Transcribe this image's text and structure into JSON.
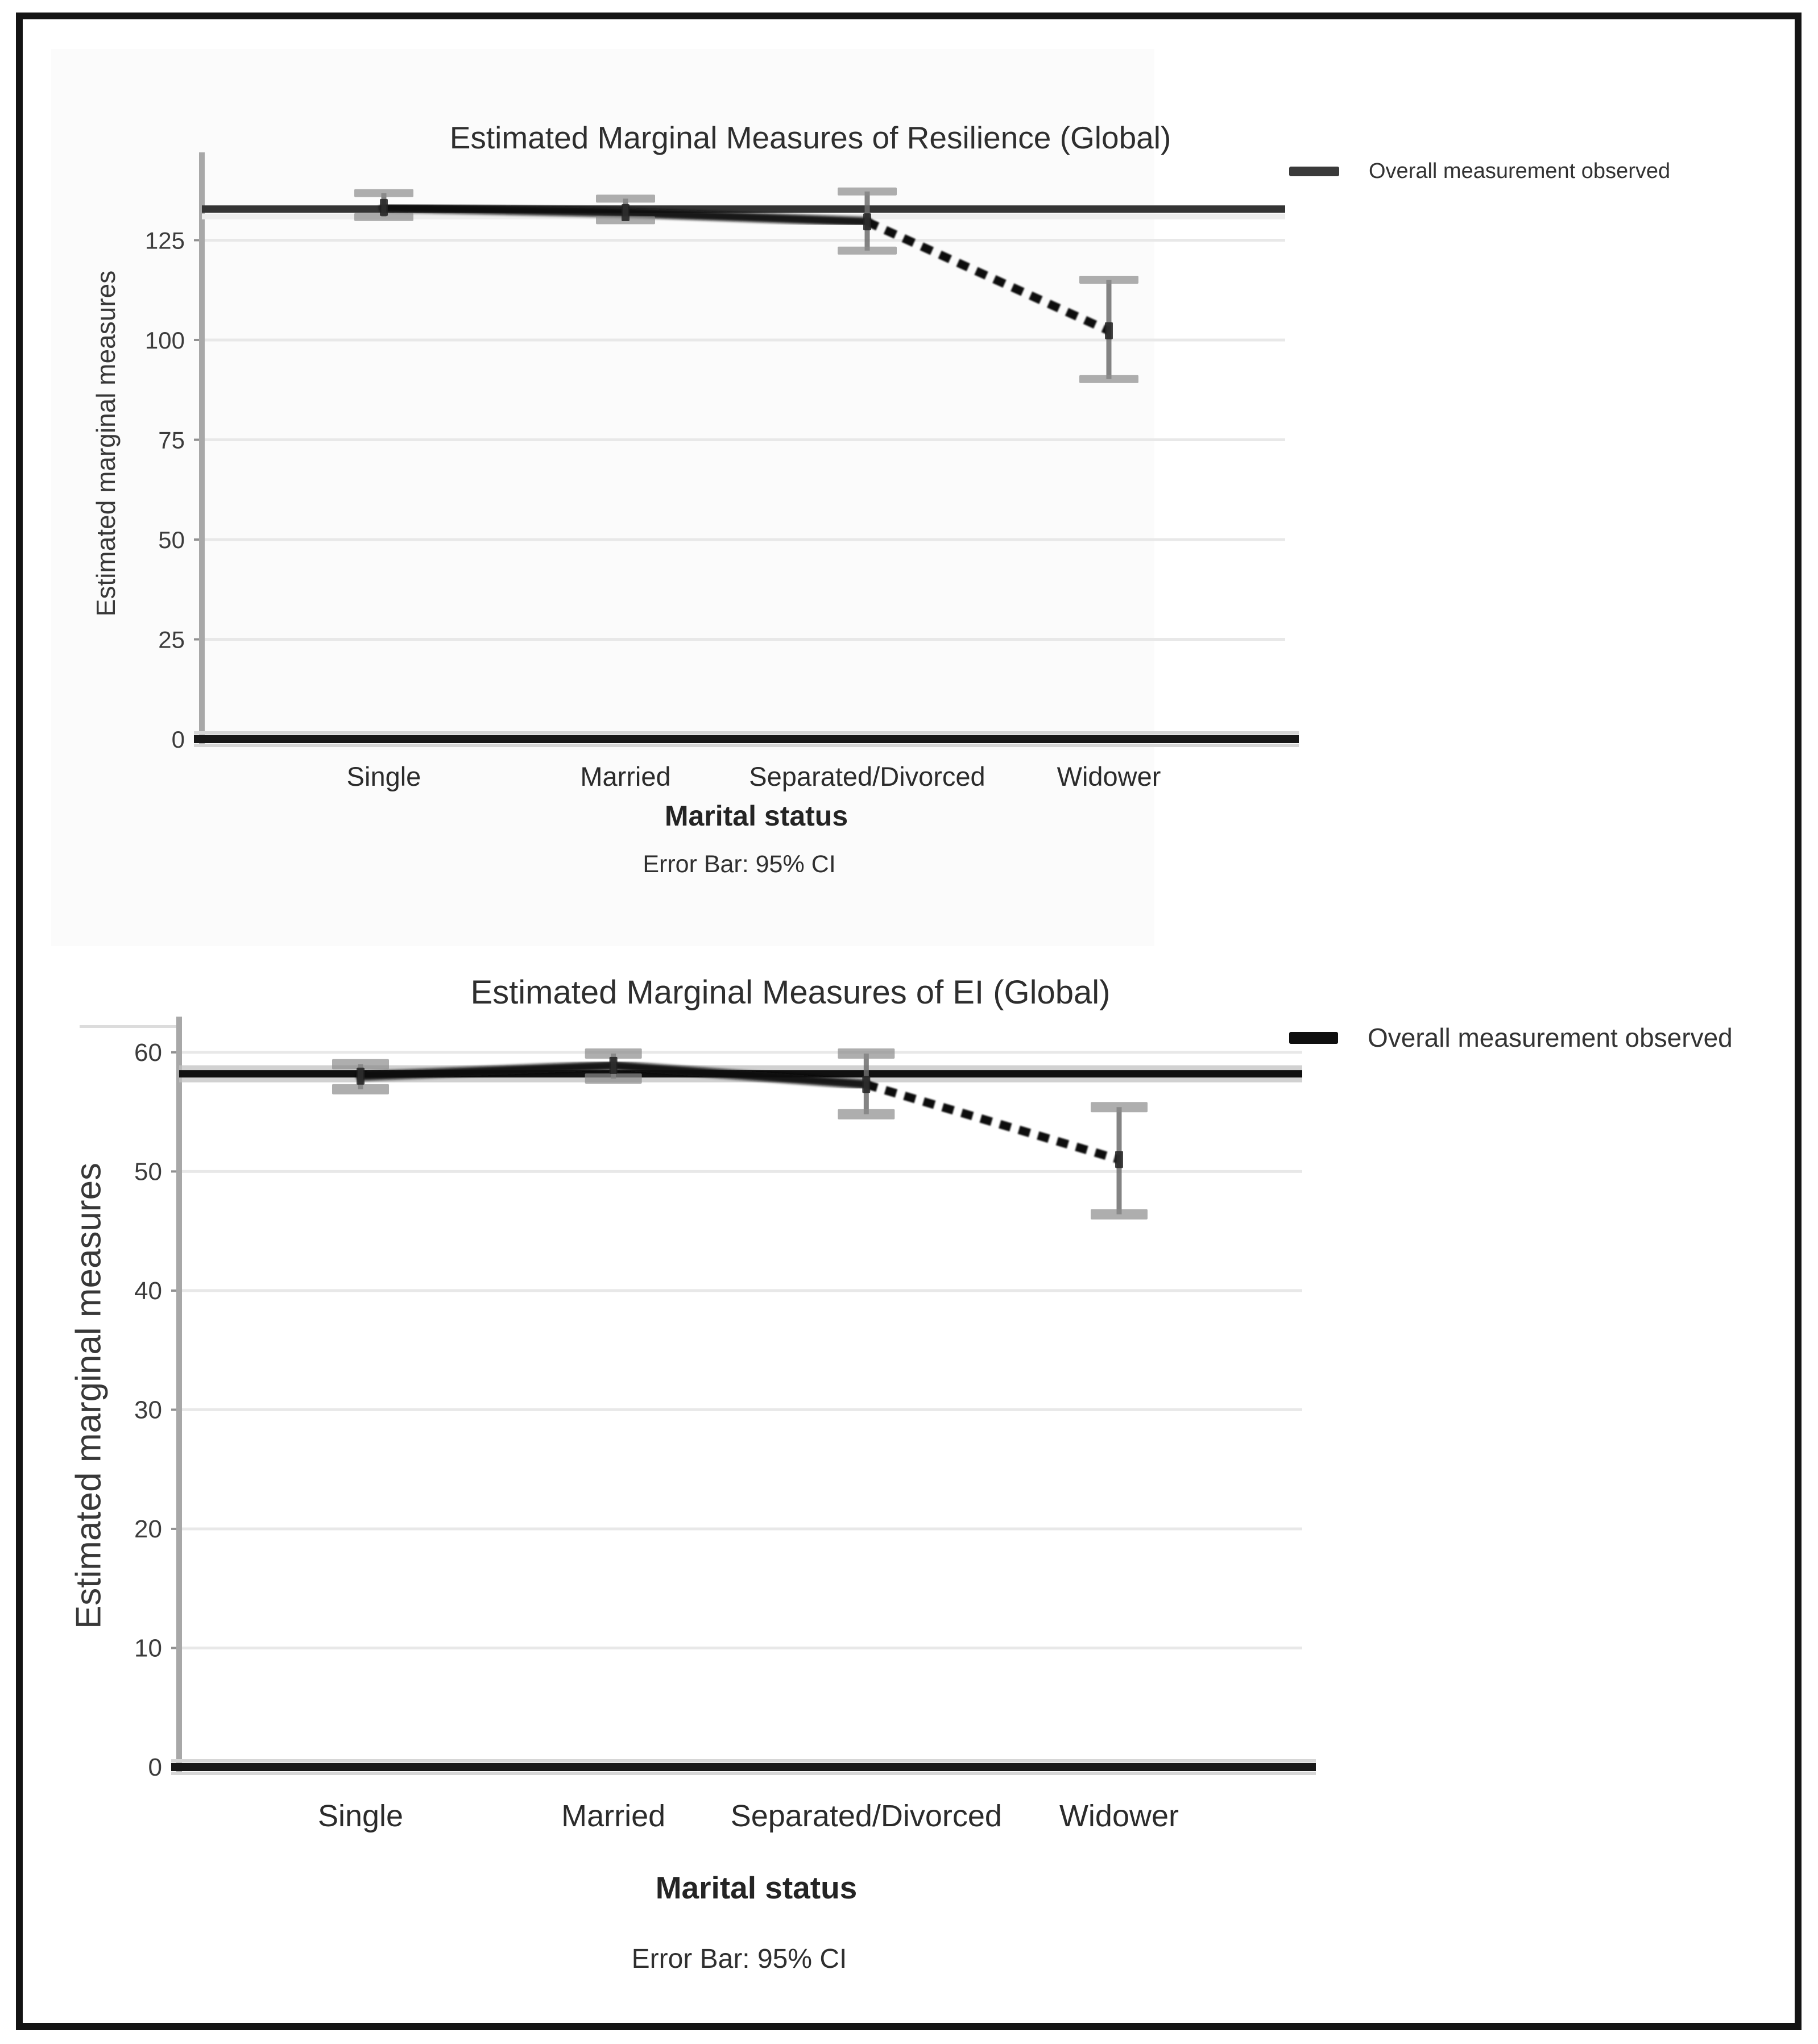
{
  "chart_data": [
    {
      "type": "line",
      "title": "Estimated Marginal Measures of Resilience (Global)",
      "ylabel": "Estimated marginal measures",
      "xlabel": "Marital status",
      "caption": "Error Bar: 95% CI",
      "legend": [
        {
          "label": "Overall measurement observed"
        }
      ],
      "legend_position": "top-right",
      "categories": [
        "Single",
        "Married",
        "Separated/Divorced",
        "Widower"
      ],
      "series": [
        {
          "name": "Estimated marginal measures of Resilience",
          "values": [
            133.2,
            131.9,
            129.6,
            102.3
          ],
          "ci_low": [
            130.8,
            130.0,
            122.4,
            90.2
          ],
          "ci_high": [
            136.8,
            135.4,
            137.2,
            115.1
          ],
          "dashed_from_index": 2
        }
      ],
      "reference_line": {
        "value": 132.8,
        "label": "Overall measurement observed"
      },
      "error_bars": "95% CI",
      "ylim": [
        0,
        147
      ],
      "yticks": [
        0,
        25,
        50,
        75,
        100,
        125
      ],
      "grid": true
    },
    {
      "type": "line",
      "title": "Estimated Marginal Measures of EI (Global)",
      "ylabel": "Estimated marginal measures",
      "xlabel": "Marital status",
      "caption": "Error Bar: 95% CI",
      "legend": [
        {
          "label": "Overall measurement observed"
        }
      ],
      "legend_position": "top-right",
      "categories": [
        "Single",
        "Married",
        "Separated/Divorced",
        "Widower"
      ],
      "series": [
        {
          "name": "Estimated marginal measures of EI",
          "values": [
            58.0,
            58.9,
            57.3,
            51.0
          ],
          "ci_low": [
            56.9,
            57.8,
            54.8,
            46.4
          ],
          "ci_high": [
            59.0,
            59.9,
            59.9,
            55.4
          ],
          "dashed_from_index": 2
        }
      ],
      "reference_line": {
        "value": 58.2,
        "label": "Overall measurement observed"
      },
      "error_bars": "95% CI",
      "ylim": [
        0,
        63
      ],
      "yticks": [
        0,
        10,
        20,
        30,
        40,
        50,
        60
      ],
      "grid": true
    }
  ],
  "colors": {
    "grid": "#e8e8e8",
    "y_axis": "#a8a8a8",
    "baseline": "#181818",
    "baseline_halo": "#d6d6d6",
    "reference_line_top": "#343434",
    "reference_line_bottom": "#101010",
    "reference_halo": "#c2c2c2",
    "series_line": "#0d0d0d",
    "error_stem": "#6f6f6f",
    "error_cap": "#8c8c8c",
    "marker": "#222222",
    "tick_text": "#3c3c3c",
    "category_text": "#2b2b2b",
    "frame": "#141414",
    "panel": "#fbfbfb"
  }
}
